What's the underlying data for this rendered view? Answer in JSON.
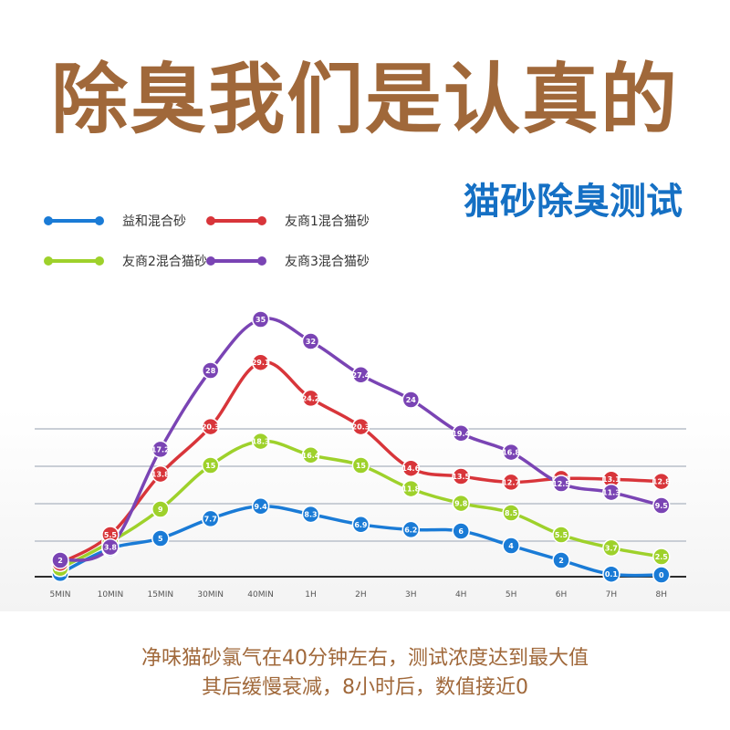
{
  "headline": "除臭我们是认真的",
  "subheadline": "猫砂除臭测试",
  "colors": {
    "headline": "#a0683a",
    "subheadline": "#1570c4",
    "footer": "#a0683a",
    "gridline": "#c9ced6",
    "axis_label": "#555555"
  },
  "legend": [
    {
      "name": "益和混合砂",
      "color": "#1a7bd6"
    },
    {
      "name": "友商1混合猫砂",
      "color": "#d8353a"
    },
    {
      "name": "友商2混合猫砂",
      "color": "#9ed12b"
    },
    {
      "name": "友商3混合猫砂",
      "color": "#7a44b4"
    }
  ],
  "chart_data": {
    "type": "line",
    "x": [
      "5MIN",
      "10MIN",
      "15MIN",
      "30MIN",
      "40MIN",
      "1H",
      "2H",
      "3H",
      "4H",
      "5H",
      "6H",
      "7H",
      "8H"
    ],
    "grid": true,
    "legend_position": "top-left",
    "ylim": [
      0,
      35
    ],
    "series": [
      {
        "name": "益和混合砂",
        "color": "#1a7bd6",
        "values": [
          0.2,
          3.6,
          5,
          7.7,
          9.4,
          8.3,
          6.9,
          6.2,
          6,
          4,
          2,
          0.1,
          0
        ],
        "labels": [
          "0.2",
          "3.6",
          "5",
          "7.7",
          "9.4",
          "8.3",
          "6.9",
          "6.2",
          "6",
          "4",
          "2",
          "0.1",
          "0"
        ]
      },
      {
        "name": "友商2混合猫砂",
        "color": "#9ed12b",
        "values": [
          0.9,
          4.5,
          9,
          15,
          18.3,
          16.4,
          15,
          11.8,
          9.8,
          8.5,
          5.5,
          3.7,
          2.5
        ],
        "labels": [
          "0.9",
          "4.5",
          "9",
          "15",
          "18.3",
          "16.4",
          "15",
          "11.8",
          "9.8",
          "8.5",
          "5.5",
          "3.7",
          "2.5"
        ]
      },
      {
        "name": "友商1混合猫砂",
        "color": "#d8353a",
        "values": [
          1.6,
          5.5,
          13.8,
          20.3,
          29.1,
          24.2,
          20.3,
          14.6,
          13.5,
          12.7,
          13.2,
          13.1,
          12.8
        ],
        "labels": [
          "1.6",
          "5.5",
          "13.8",
          "20.3",
          "29.1",
          "24.2",
          "20.3",
          "14.6",
          "13.5",
          "12.7",
          "13.2",
          "13.1",
          "12.8"
        ]
      },
      {
        "name": "友商3混合猫砂",
        "color": "#7a44b4",
        "values": [
          2,
          3.8,
          17.2,
          28,
          35,
          32,
          27.4,
          24,
          19.4,
          16.8,
          12.5,
          11.3,
          9.5
        ],
        "labels": [
          "2",
          "3.8",
          "17.2",
          "28",
          "35",
          "32",
          "27.4",
          "24",
          "19.4",
          "16.8",
          "12.5",
          "11.3",
          "9.5"
        ]
      }
    ]
  },
  "footer": {
    "line1": "净味猫砂氯气在40分钟左右，测试浓度达到最大值",
    "line2": "其后缓慢衰减，8小时后，数值接近0"
  }
}
